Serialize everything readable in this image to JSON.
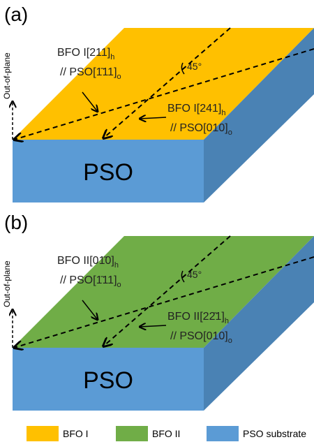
{
  "panels": [
    {
      "label": "(a)",
      "axis_label": "Out-of-plane",
      "substrate": "PSO",
      "angle": "45°",
      "annotations": [
        {
          "main": "BFO I[211]",
          "main_sub": "h",
          "second": "// PSO[1̄11]",
          "second_sub": "o"
        },
        {
          "main": "BFO I[241]",
          "main_sub": "h",
          "second": "// PSO[010]",
          "second_sub": "o"
        }
      ]
    },
    {
      "label": "(b)",
      "axis_label": "Out-of-plane",
      "substrate": "PSO",
      "angle": "45°",
      "annotations": [
        {
          "main": "BFO II[01̄0]",
          "main_sub": "h",
          "second": "// PSO[1̄11]",
          "second_sub": "o"
        },
        {
          "main": "BFO II[22̄1]",
          "main_sub": "h",
          "second": "// PSO[010]",
          "second_sub": "o"
        }
      ]
    }
  ],
  "legend": [
    {
      "label": "BFO I",
      "color": "#ffc000"
    },
    {
      "label": "BFO II",
      "color": "#70ad47"
    },
    {
      "label": "PSO substrate",
      "color": "#5b9bd5"
    }
  ]
}
